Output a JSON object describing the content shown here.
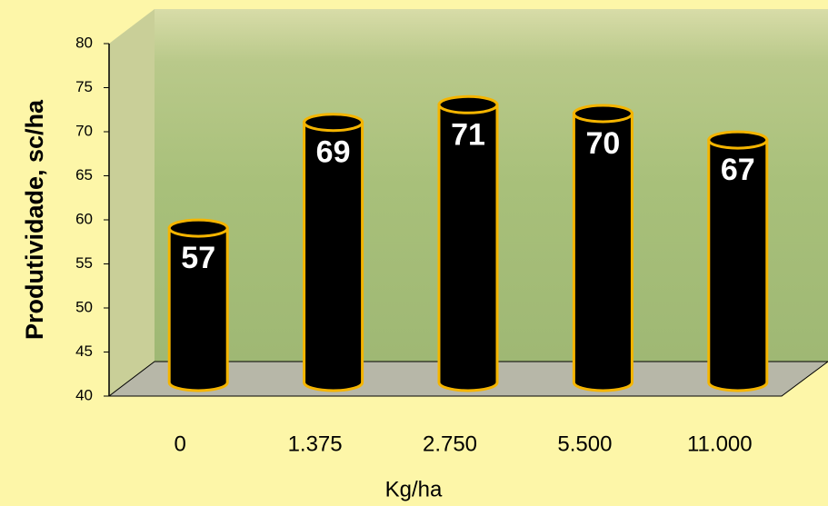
{
  "chart_data": {
    "type": "bar",
    "style": "cylinder-3d",
    "x_label": "Kg/ha",
    "y_label": "Produtividade, sc/ha",
    "categories": [
      "0",
      "1.375",
      "2.750",
      "5.500",
      "11.000"
    ],
    "values": [
      57,
      69,
      71,
      70,
      67
    ],
    "color": "#000000",
    "edge_color": "#f5b500",
    "ylim": [
      40,
      80
    ],
    "yticks": [
      40,
      45,
      50,
      55,
      60,
      65,
      70,
      75,
      80
    ],
    "grid": false
  }
}
